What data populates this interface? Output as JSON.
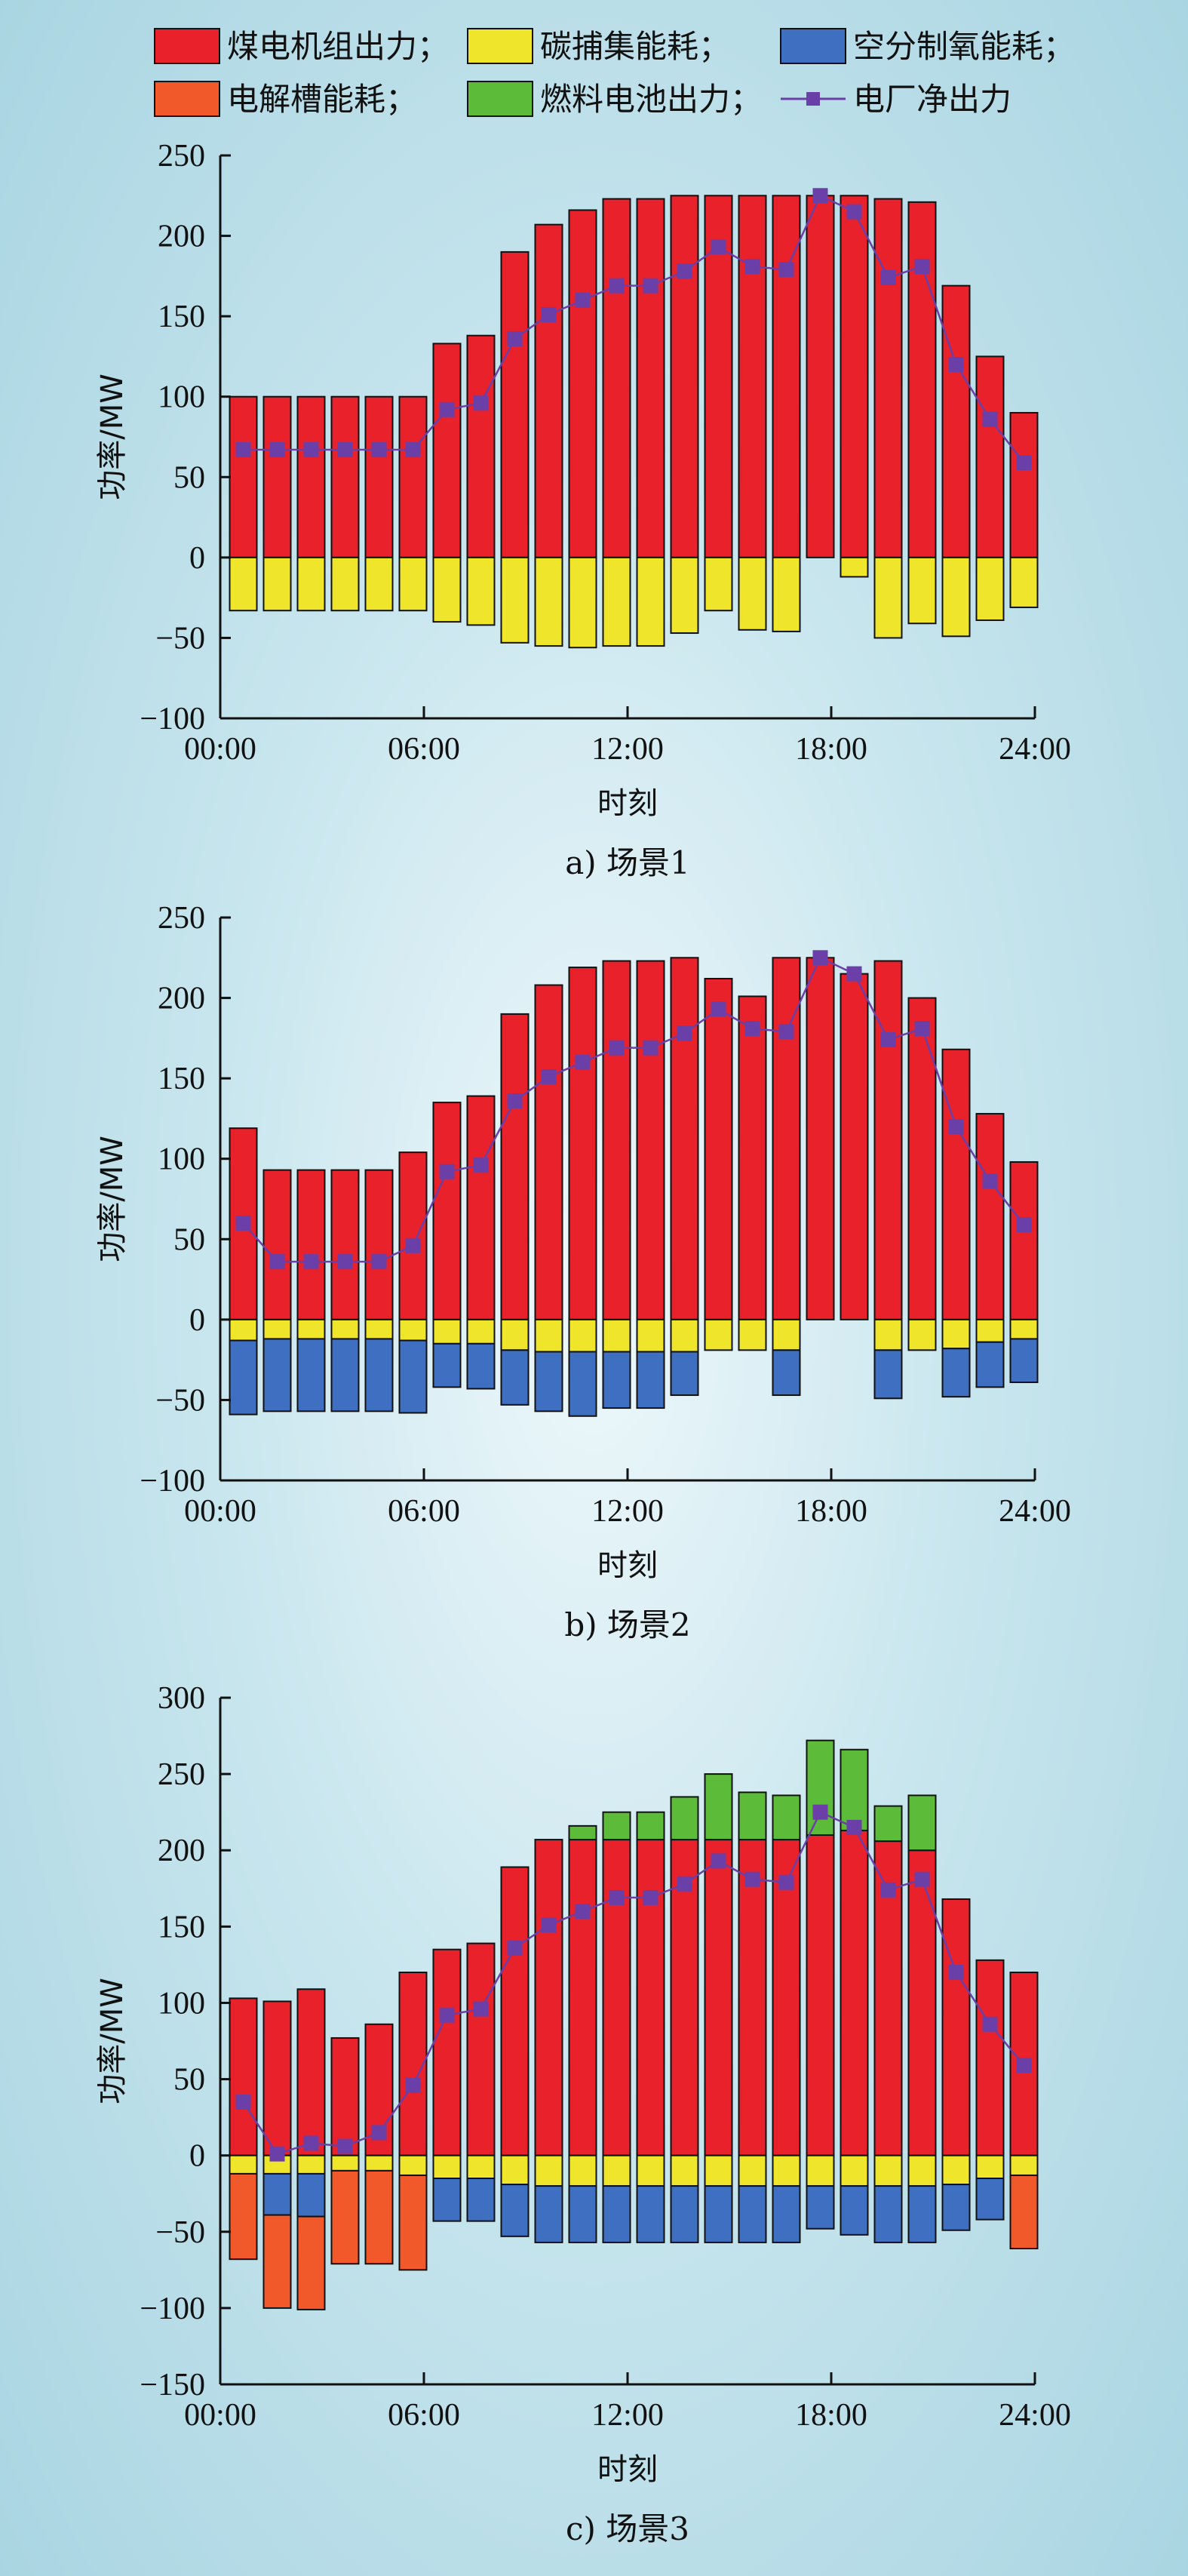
{
  "legend": {
    "items": [
      {
        "key": "coal",
        "label": "煤电机组出力；",
        "color": "#e8212a",
        "type": "bar"
      },
      {
        "key": "capture",
        "label": "碳捕集能耗；",
        "color": "#efe52a",
        "type": "bar"
      },
      {
        "key": "asu",
        "label": "空分制氧能耗；",
        "color": "#3f6fc1",
        "type": "bar"
      },
      {
        "key": "electrolyzer",
        "label": "电解槽能耗；",
        "color": "#f1592a",
        "type": "bar"
      },
      {
        "key": "fuelcell",
        "label": "燃料电池出力；",
        "color": "#5dbb3a",
        "type": "bar"
      },
      {
        "key": "net",
        "label": "电厂净出力",
        "color": "#6a3fa7",
        "type": "line"
      }
    ]
  },
  "chart_data": [
    {
      "type": "bar",
      "caption": "a) 场景1",
      "xlabel": "时刻",
      "ylabel": "功率/MW",
      "ylim": [
        -100,
        250
      ],
      "yticks": [
        -100,
        -50,
        0,
        50,
        100,
        150,
        200,
        250
      ],
      "xlim": [
        0,
        24
      ],
      "xticks": [
        {
          "v": 0,
          "label": "00:00"
        },
        {
          "v": 6,
          "label": "06:00"
        },
        {
          "v": 12,
          "label": "12:00"
        },
        {
          "v": 18,
          "label": "18:00"
        },
        {
          "v": 24,
          "label": "24:00"
        }
      ],
      "x": [
        1,
        2,
        3,
        4,
        5,
        6,
        7,
        8,
        9,
        10,
        11,
        12,
        13,
        14,
        15,
        16,
        17,
        18,
        19,
        20,
        21,
        22,
        23,
        24
      ],
      "positive_series": [
        {
          "key": "coal",
          "values": [
            100,
            100,
            100,
            100,
            100,
            100,
            133,
            138,
            190,
            207,
            216,
            223,
            223,
            225,
            225,
            225,
            225,
            225,
            225,
            223,
            221,
            169,
            125,
            90
          ]
        }
      ],
      "negative_series": [
        {
          "key": "capture",
          "values": [
            -33,
            -33,
            -33,
            -33,
            -33,
            -33,
            -40,
            -42,
            -53,
            -55,
            -56,
            -55,
            -55,
            -47,
            -33,
            -45,
            -46,
            0,
            -12,
            -50,
            -41,
            -49,
            -39,
            -31
          ]
        }
      ],
      "net": [
        67,
        67,
        67,
        67,
        67,
        67,
        92,
        96,
        136,
        151,
        160,
        169,
        169,
        178,
        193,
        181,
        179,
        225,
        215,
        174,
        181,
        120,
        86,
        59
      ]
    },
    {
      "type": "bar",
      "caption": "b) 场景2",
      "xlabel": "时刻",
      "ylabel": "功率/MW",
      "ylim": [
        -100,
        250
      ],
      "yticks": [
        -100,
        -50,
        0,
        50,
        100,
        150,
        200,
        250
      ],
      "xlim": [
        0,
        24
      ],
      "xticks": [
        {
          "v": 0,
          "label": "00:00"
        },
        {
          "v": 6,
          "label": "06:00"
        },
        {
          "v": 12,
          "label": "12:00"
        },
        {
          "v": 18,
          "label": "18:00"
        },
        {
          "v": 24,
          "label": "24:00"
        }
      ],
      "x": [
        1,
        2,
        3,
        4,
        5,
        6,
        7,
        8,
        9,
        10,
        11,
        12,
        13,
        14,
        15,
        16,
        17,
        18,
        19,
        20,
        21,
        22,
        23,
        24
      ],
      "positive_series": [
        {
          "key": "coal",
          "values": [
            119,
            93,
            93,
            93,
            93,
            104,
            135,
            139,
            190,
            208,
            219,
            223,
            223,
            225,
            212,
            201,
            225,
            225,
            215,
            223,
            200,
            168,
            128,
            98
          ]
        }
      ],
      "negative_series": [
        {
          "key": "capture",
          "values": [
            -13,
            -12,
            -12,
            -12,
            -12,
            -13,
            -15,
            -15,
            -19,
            -20,
            -20,
            -20,
            -20,
            -20,
            -19,
            -19,
            -19,
            0,
            0,
            -19,
            -19,
            -18,
            -14,
            -12
          ]
        },
        {
          "key": "asu",
          "values": [
            -46,
            -45,
            -45,
            -45,
            -45,
            -45,
            -27,
            -28,
            -34,
            -37,
            -40,
            -35,
            -35,
            -27,
            0,
            0,
            -28,
            0,
            0,
            -30,
            0,
            -30,
            -28,
            -27
          ]
        }
      ],
      "net": [
        60,
        36,
        36,
        36,
        36,
        46,
        92,
        96,
        136,
        151,
        160,
        169,
        169,
        178,
        193,
        181,
        179,
        225,
        215,
        174,
        181,
        120,
        86,
        59
      ]
    },
    {
      "type": "bar",
      "caption": "c) 场景3",
      "xlabel": "时刻",
      "ylabel": "功率/MW",
      "ylim": [
        -150,
        300
      ],
      "yticks": [
        -150,
        -100,
        -50,
        0,
        50,
        100,
        150,
        200,
        250,
        300
      ],
      "xlim": [
        0,
        24
      ],
      "xticks": [
        {
          "v": 0,
          "label": "00:00"
        },
        {
          "v": 6,
          "label": "06:00"
        },
        {
          "v": 12,
          "label": "12:00"
        },
        {
          "v": 18,
          "label": "18:00"
        },
        {
          "v": 24,
          "label": "24:00"
        }
      ],
      "x": [
        1,
        2,
        3,
        4,
        5,
        6,
        7,
        8,
        9,
        10,
        11,
        12,
        13,
        14,
        15,
        16,
        17,
        18,
        19,
        20,
        21,
        22,
        23,
        24
      ],
      "positive_series": [
        {
          "key": "coal",
          "values": [
            103,
            101,
            109,
            77,
            86,
            120,
            135,
            139,
            189,
            207,
            207,
            207,
            207,
            207,
            207,
            207,
            207,
            210,
            213,
            206,
            200,
            168,
            128,
            120
          ]
        },
        {
          "key": "fuelcell",
          "values": [
            0,
            0,
            0,
            0,
            0,
            0,
            0,
            0,
            0,
            0,
            9,
            18,
            18,
            28,
            43,
            31,
            29,
            62,
            53,
            23,
            36,
            0,
            0,
            0
          ]
        }
      ],
      "negative_series": [
        {
          "key": "capture",
          "values": [
            -12,
            -12,
            -12,
            -10,
            -10,
            -13,
            -15,
            -15,
            -19,
            -20,
            -20,
            -20,
            -20,
            -20,
            -20,
            -20,
            -20,
            -20,
            -20,
            -20,
            -20,
            -19,
            -15,
            -13
          ]
        },
        {
          "key": "asu",
          "values": [
            0,
            -27,
            -28,
            0,
            0,
            0,
            -28,
            -28,
            -34,
            -37,
            -37,
            -37,
            -37,
            -37,
            -37,
            -37,
            -37,
            -28,
            -32,
            -37,
            -37,
            -30,
            -27,
            0
          ]
        },
        {
          "key": "electrolyzer",
          "values": [
            -56,
            -61,
            -61,
            -61,
            -61,
            -62,
            0,
            0,
            0,
            0,
            0,
            0,
            0,
            0,
            0,
            0,
            0,
            0,
            0,
            0,
            0,
            0,
            0,
            -48
          ]
        }
      ],
      "net": [
        35,
        1,
        8,
        6,
        15,
        46,
        92,
        96,
        136,
        151,
        160,
        169,
        169,
        178,
        193,
        181,
        179,
        225,
        215,
        174,
        181,
        120,
        86,
        59
      ]
    }
  ]
}
